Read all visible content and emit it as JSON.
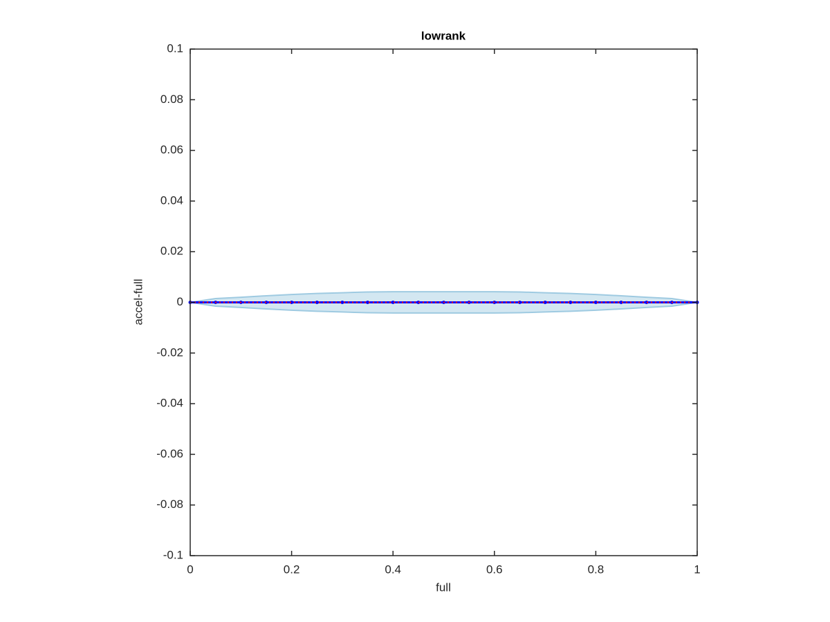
{
  "chart_data": {
    "type": "band-line",
    "title": "lowrank",
    "x_label": "full",
    "y_label": "accel-full",
    "x": [
      0,
      0.05,
      0.1,
      0.15,
      0.2,
      0.25,
      0.3,
      0.35,
      0.4,
      0.45,
      0.5,
      0.55,
      0.6,
      0.65,
      0.7,
      0.75,
      0.8,
      0.85,
      0.9,
      0.95,
      1
    ],
    "band": {
      "color": "#9ecae1",
      "upper": [
        0,
        0.0015,
        0.002,
        0.0026,
        0.0031,
        0.0035,
        0.0038,
        0.0041,
        0.0042,
        0.0042,
        0.0042,
        0.0042,
        0.0042,
        0.0041,
        0.0038,
        0.0035,
        0.0031,
        0.0026,
        0.002,
        0.0015,
        0
      ],
      "lower": [
        0,
        -0.0015,
        -0.002,
        -0.0026,
        -0.0031,
        -0.0035,
        -0.0038,
        -0.0041,
        -0.0042,
        -0.0042,
        -0.0042,
        -0.0042,
        -0.0042,
        -0.0041,
        -0.0038,
        -0.0035,
        -0.0031,
        -0.0026,
        -0.002,
        -0.0015,
        0
      ]
    },
    "series": [
      {
        "color": "#0000ff",
        "line_style": "solid",
        "markers": true,
        "values": [
          0,
          0,
          0,
          0,
          0,
          0,
          0,
          0,
          0,
          0,
          0,
          0,
          0,
          0,
          0,
          0,
          0,
          0,
          0,
          0,
          0
        ]
      },
      {
        "color": "#ff0000",
        "line_style": "dotted",
        "markers": false,
        "values": [
          0,
          0,
          0,
          0,
          0,
          0,
          0,
          0,
          0,
          0,
          0,
          0,
          0,
          0,
          0,
          0,
          0,
          0,
          0,
          0,
          0
        ]
      }
    ],
    "xlim": [
      0,
      1
    ],
    "xticks": [
      0,
      0.2,
      0.4,
      0.6,
      0.8,
      1
    ],
    "ylim": [
      -0.1,
      0.1
    ],
    "yticks": [
      -0.1,
      -0.08,
      -0.06,
      -0.04,
      -0.02,
      0,
      0.02,
      0.04,
      0.06,
      0.08,
      0.1
    ],
    "grid": false
  }
}
